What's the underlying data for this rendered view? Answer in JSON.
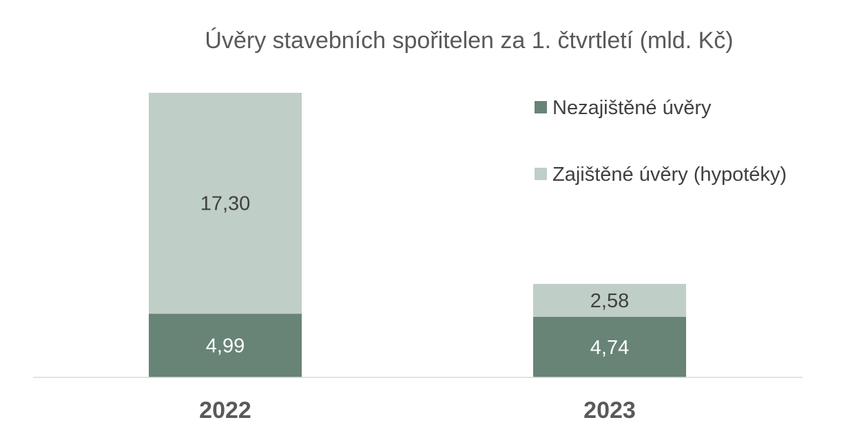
{
  "chart_data": {
    "type": "bar",
    "stacked": true,
    "title": "Úvěry stavebních spořitelen za 1. čtvrtletí (mld. Kč)",
    "categories": [
      "2022",
      "2023"
    ],
    "series": [
      {
        "name": "Nezajištěné úvěry",
        "values": [
          4.99,
          4.74
        ],
        "labels": [
          "4,99",
          "4,74"
        ],
        "color": "#678476",
        "label_color": "#ffffff"
      },
      {
        "name": "Zajištěné úvěry (hypotéky)",
        "values": [
          17.3,
          2.58
        ],
        "labels": [
          "17,30",
          "2,58"
        ],
        "color": "#bfcec7",
        "label_color": "#404040"
      }
    ],
    "legend": "top-right",
    "grid": false,
    "axis_color": "#d9d9d9",
    "ylim": [
      0,
      22.29
    ]
  }
}
